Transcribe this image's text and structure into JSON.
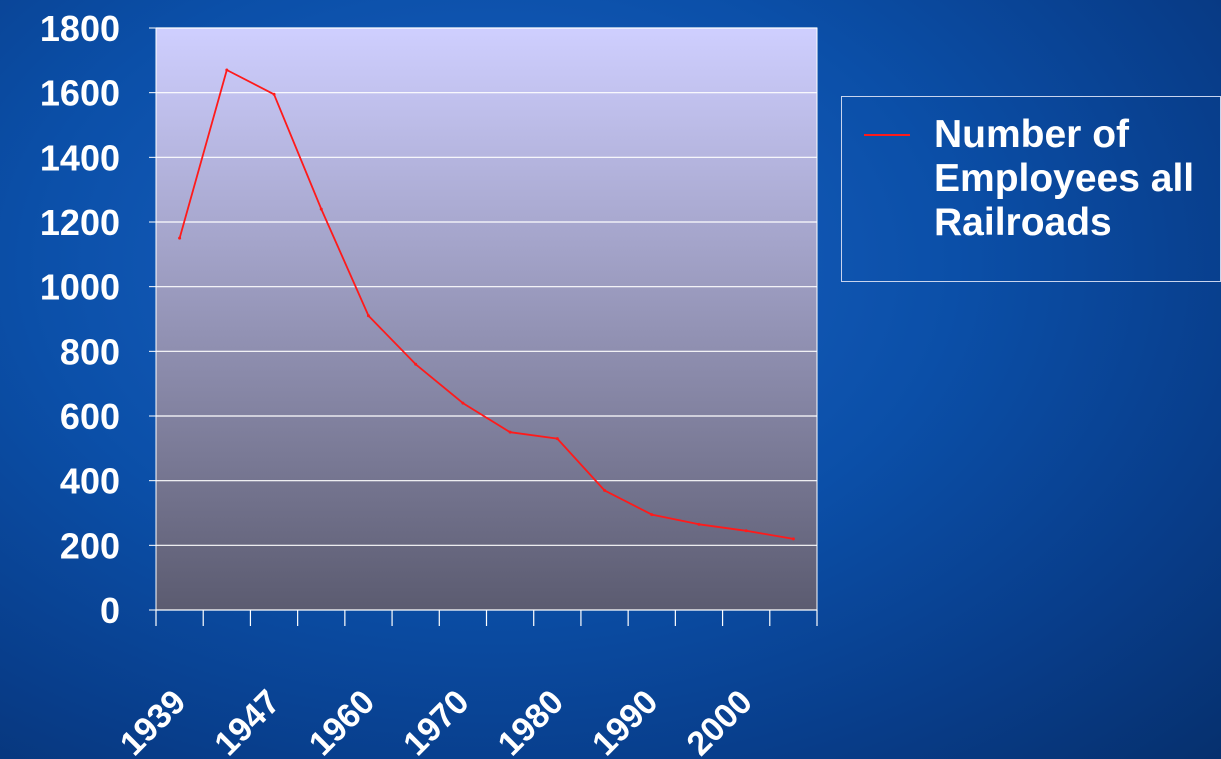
{
  "chart_data": {
    "type": "line",
    "title": "",
    "xlabel": "",
    "ylabel": "",
    "ylim": [
      0,
      1800
    ],
    "yticks": [
      "0",
      "200",
      "400",
      "600",
      "800",
      "1000",
      "1200",
      "1400",
      "1600",
      "1800"
    ],
    "xtick_labels": [
      "1939",
      "1947",
      "1960",
      "1970",
      "1980",
      "1990",
      "2000"
    ],
    "grid": true,
    "legend_position": "right",
    "series": [
      {
        "name": "Number of Employees all Railroads",
        "color": "#ff1a1a",
        "values": [
          1150,
          1670,
          1595,
          1240,
          910,
          760,
          640,
          550,
          530,
          370,
          295,
          265,
          245,
          220
        ]
      }
    ]
  }
}
